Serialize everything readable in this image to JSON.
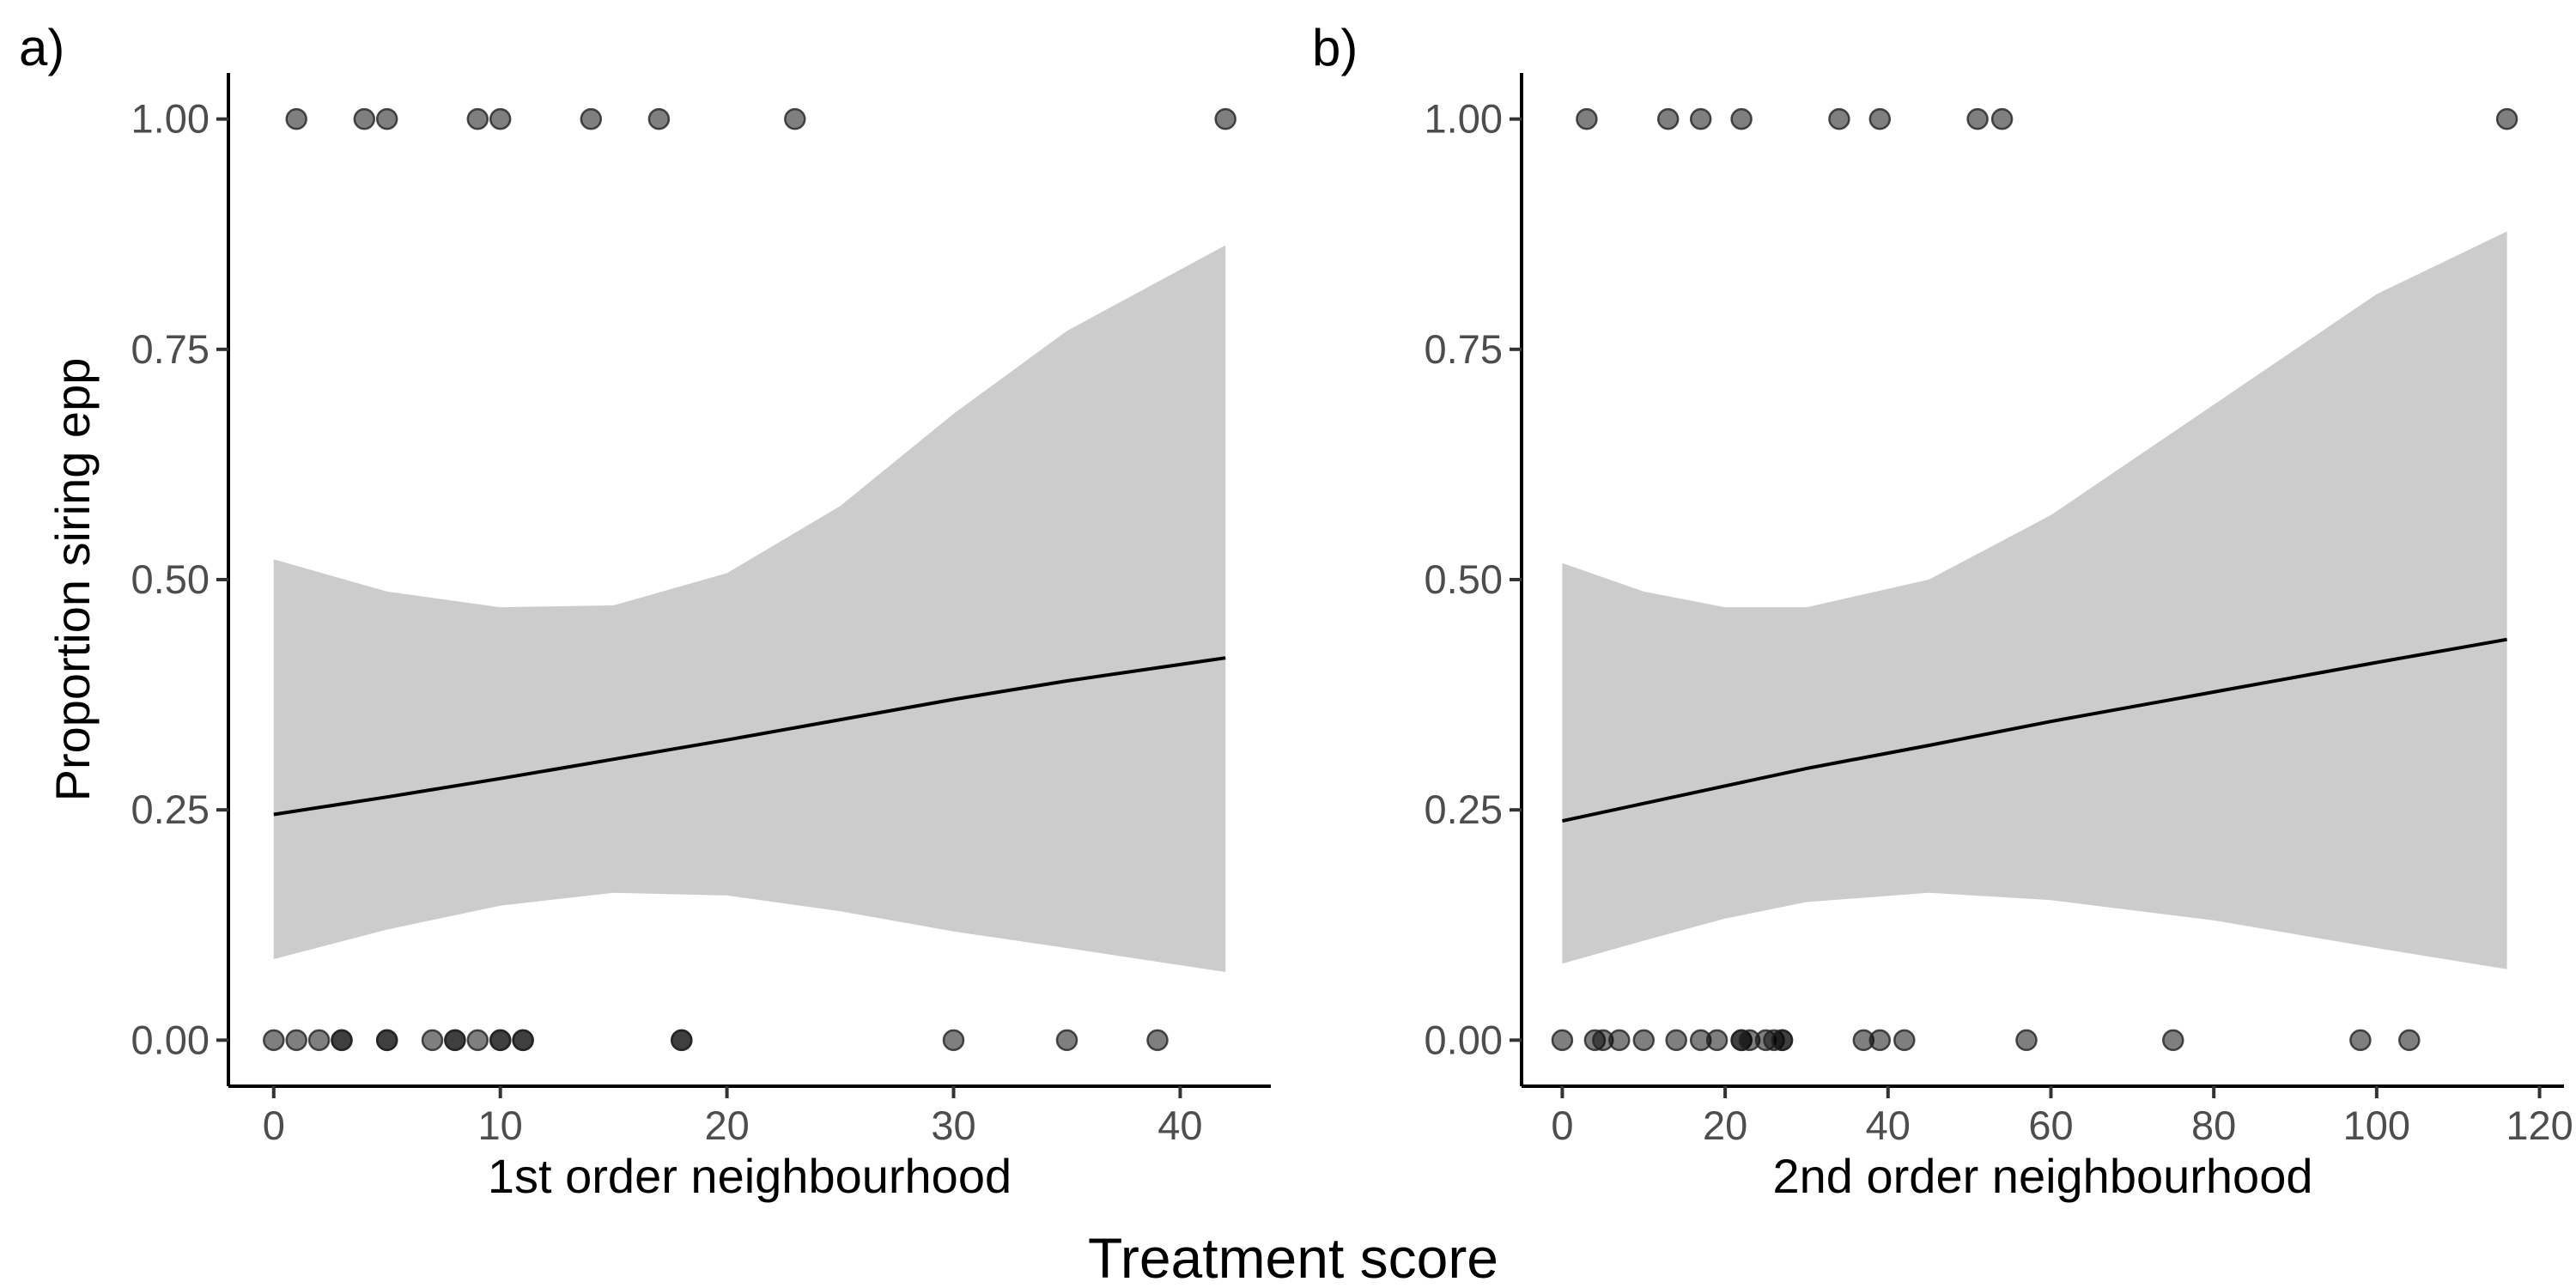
{
  "figure": {
    "shared_xlabel": "Treatment score",
    "colors": {
      "band": "#cccccc",
      "line": "#000000",
      "point": "#000000",
      "point_opacity": 0.5
    }
  },
  "chart_data": [
    {
      "type": "scatter",
      "panel_label": "a)",
      "title": "",
      "xlabel": "1st order neighbourhood",
      "ylabel": "Proportion siring epp",
      "xlim": [
        -2,
        44
      ],
      "ylim": [
        -0.05,
        1.05
      ],
      "xticks": [
        0,
        10,
        20,
        30,
        40
      ],
      "yticks": [
        0.0,
        0.25,
        0.5,
        0.75,
        1.0
      ],
      "ytick_labels": [
        "0.00",
        "0.25",
        "0.50",
        "0.75",
        "1.00"
      ],
      "grid": false,
      "legend": "none",
      "points": [
        {
          "x": 1,
          "y": 1
        },
        {
          "x": 4,
          "y": 1
        },
        {
          "x": 5,
          "y": 1
        },
        {
          "x": 9,
          "y": 1
        },
        {
          "x": 10,
          "y": 1
        },
        {
          "x": 14,
          "y": 1
        },
        {
          "x": 17,
          "y": 1
        },
        {
          "x": 23,
          "y": 1
        },
        {
          "x": 42,
          "y": 1
        },
        {
          "x": 0,
          "y": 0
        },
        {
          "x": 1,
          "y": 0
        },
        {
          "x": 2,
          "y": 0
        },
        {
          "x": 3,
          "y": 0
        },
        {
          "x": 3,
          "y": 0
        },
        {
          "x": 5,
          "y": 0
        },
        {
          "x": 5,
          "y": 0
        },
        {
          "x": 7,
          "y": 0
        },
        {
          "x": 8,
          "y": 0
        },
        {
          "x": 8,
          "y": 0
        },
        {
          "x": 9,
          "y": 0
        },
        {
          "x": 10,
          "y": 0
        },
        {
          "x": 10,
          "y": 0
        },
        {
          "x": 11,
          "y": 0
        },
        {
          "x": 11,
          "y": 0
        },
        {
          "x": 18,
          "y": 0
        },
        {
          "x": 18,
          "y": 0
        },
        {
          "x": 30,
          "y": 0
        },
        {
          "x": 35,
          "y": 0
        },
        {
          "x": 39,
          "y": 0
        }
      ],
      "fit": {
        "x": [
          0,
          5,
          10,
          15,
          20,
          25,
          30,
          35,
          42
        ],
        "y": [
          0.245,
          0.264,
          0.284,
          0.305,
          0.326,
          0.348,
          0.37,
          0.39,
          0.415
        ],
        "lower": [
          0.088,
          0.12,
          0.146,
          0.16,
          0.157,
          0.14,
          0.118,
          0.1,
          0.074
        ],
        "upper": [
          0.522,
          0.487,
          0.47,
          0.472,
          0.507,
          0.58,
          0.68,
          0.77,
          0.863
        ]
      }
    },
    {
      "type": "scatter",
      "panel_label": "b)",
      "title": "",
      "xlabel": "2nd order neighbourhood",
      "ylabel": "",
      "xlim": [
        -5,
        123
      ],
      "ylim": [
        -0.05,
        1.05
      ],
      "xticks": [
        0,
        20,
        40,
        60,
        80,
        100,
        120
      ],
      "yticks": [
        0.0,
        0.25,
        0.5,
        0.75,
        1.0
      ],
      "ytick_labels": [
        "0.00",
        "0.25",
        "0.50",
        "0.75",
        "1.00"
      ],
      "grid": false,
      "legend": "none",
      "points": [
        {
          "x": 3,
          "y": 1
        },
        {
          "x": 13,
          "y": 1
        },
        {
          "x": 17,
          "y": 1
        },
        {
          "x": 22,
          "y": 1
        },
        {
          "x": 34,
          "y": 1
        },
        {
          "x": 39,
          "y": 1
        },
        {
          "x": 51,
          "y": 1
        },
        {
          "x": 54,
          "y": 1
        },
        {
          "x": 116,
          "y": 1
        },
        {
          "x": 0,
          "y": 0
        },
        {
          "x": 4,
          "y": 0
        },
        {
          "x": 5,
          "y": 0
        },
        {
          "x": 7,
          "y": 0
        },
        {
          "x": 10,
          "y": 0
        },
        {
          "x": 14,
          "y": 0
        },
        {
          "x": 17,
          "y": 0
        },
        {
          "x": 19,
          "y": 0
        },
        {
          "x": 22,
          "y": 0
        },
        {
          "x": 22,
          "y": 0
        },
        {
          "x": 23,
          "y": 0
        },
        {
          "x": 25,
          "y": 0
        },
        {
          "x": 26,
          "y": 0
        },
        {
          "x": 27,
          "y": 0
        },
        {
          "x": 27,
          "y": 0
        },
        {
          "x": 37,
          "y": 0
        },
        {
          "x": 39,
          "y": 0
        },
        {
          "x": 42,
          "y": 0
        },
        {
          "x": 57,
          "y": 0
        },
        {
          "x": 75,
          "y": 0
        },
        {
          "x": 98,
          "y": 0
        },
        {
          "x": 104,
          "y": 0
        }
      ],
      "fit": {
        "x": [
          0,
          10,
          20,
          30,
          45,
          60,
          80,
          100,
          116
        ],
        "y": [
          0.238,
          0.257,
          0.276,
          0.295,
          0.32,
          0.346,
          0.378,
          0.41,
          0.435
        ],
        "lower": [
          0.083,
          0.108,
          0.132,
          0.15,
          0.16,
          0.152,
          0.13,
          0.1,
          0.077
        ],
        "upper": [
          0.518,
          0.487,
          0.47,
          0.47,
          0.5,
          0.57,
          0.69,
          0.81,
          0.878
        ]
      }
    }
  ]
}
